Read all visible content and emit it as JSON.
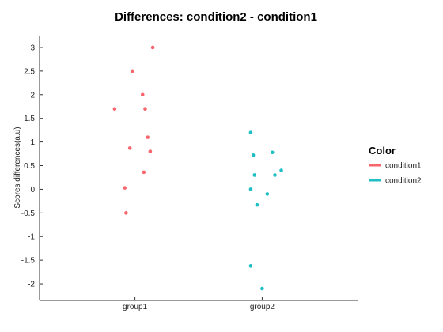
{
  "chart_data": {
    "type": "scatter",
    "title": "Differences: condition2 - condition1",
    "xlabel": "",
    "ylabel": "Scores differences(a.u)",
    "categories": [
      "group1",
      "group2"
    ],
    "ylim": [
      -2.35,
      3.25
    ],
    "yticks": [
      3,
      2.5,
      2,
      1.5,
      1,
      0.5,
      0,
      -0.5,
      -1,
      -1.5,
      -2
    ],
    "ytick_labels": [
      "3",
      "2.5",
      "2",
      "1.5",
      "1",
      "0.5",
      "0",
      "-0.5",
      "-1",
      "-1.5",
      "-2"
    ],
    "grid": false,
    "legend": {
      "title": "Color",
      "position": "right"
    },
    "series": [
      {
        "name": "condition1",
        "color": "#f8666d",
        "category": "group1",
        "jitter": [
          0.14,
          -0.02,
          0.06,
          -0.16,
          0.08,
          0.1,
          -0.04,
          0.12,
          0.07,
          -0.08,
          -0.07
        ],
        "values": [
          3.0,
          2.5,
          2.0,
          1.7,
          1.7,
          1.1,
          0.87,
          0.8,
          0.36,
          0.03,
          -0.5
        ]
      },
      {
        "name": "condition2",
        "color": "#1fbfc4",
        "category": "group2",
        "jitter": [
          -0.09,
          0.08,
          -0.07,
          0.15,
          -0.06,
          0.1,
          -0.09,
          0.04,
          -0.04,
          -0.09,
          0.0
        ],
        "values": [
          1.2,
          0.78,
          0.72,
          0.4,
          0.3,
          0.3,
          0.0,
          -0.1,
          -0.33,
          -1.62,
          -2.1
        ]
      }
    ]
  }
}
